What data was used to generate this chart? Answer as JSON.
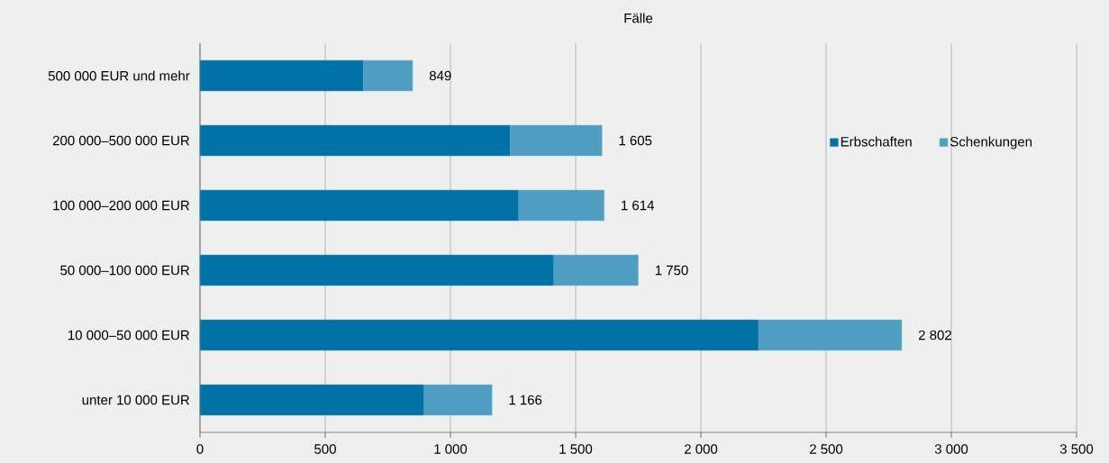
{
  "chart_data": {
    "type": "bar",
    "orientation": "horizontal",
    "stacked": true,
    "title": "Fälle",
    "categories": [
      "500 000 EUR und mehr",
      "200 000–500 000 EUR",
      "100 000–200 000 EUR",
      "50 000–100 000 EUR",
      "10 000–50 000 EUR",
      "unter 10 000 EUR"
    ],
    "series": [
      {
        "name": "Erbschaften",
        "color": "#0071a4",
        "values": [
          652,
          1238,
          1272,
          1412,
          2230,
          894
        ]
      },
      {
        "name": "Schenkungen",
        "color": "#4f9ec2",
        "values": [
          197,
          367,
          342,
          338,
          572,
          272
        ]
      }
    ],
    "totals": [
      "849",
      "1 605",
      "1 614",
      "1 750",
      "2 802",
      "1 166"
    ],
    "xlim": [
      0,
      3500
    ],
    "xticks": [
      0,
      500,
      {
        "value": 1000,
        "label": "1 000"
      },
      {
        "value": 1500,
        "label": "1 500"
      },
      {
        "value": 2000,
        "label": "2 000"
      },
      {
        "value": 2500,
        "label": "2 500"
      },
      {
        "value": 3000,
        "label": "3 000"
      },
      {
        "value": 3500,
        "label": "3 500"
      }
    ],
    "grid": "x",
    "legend": "top right"
  }
}
